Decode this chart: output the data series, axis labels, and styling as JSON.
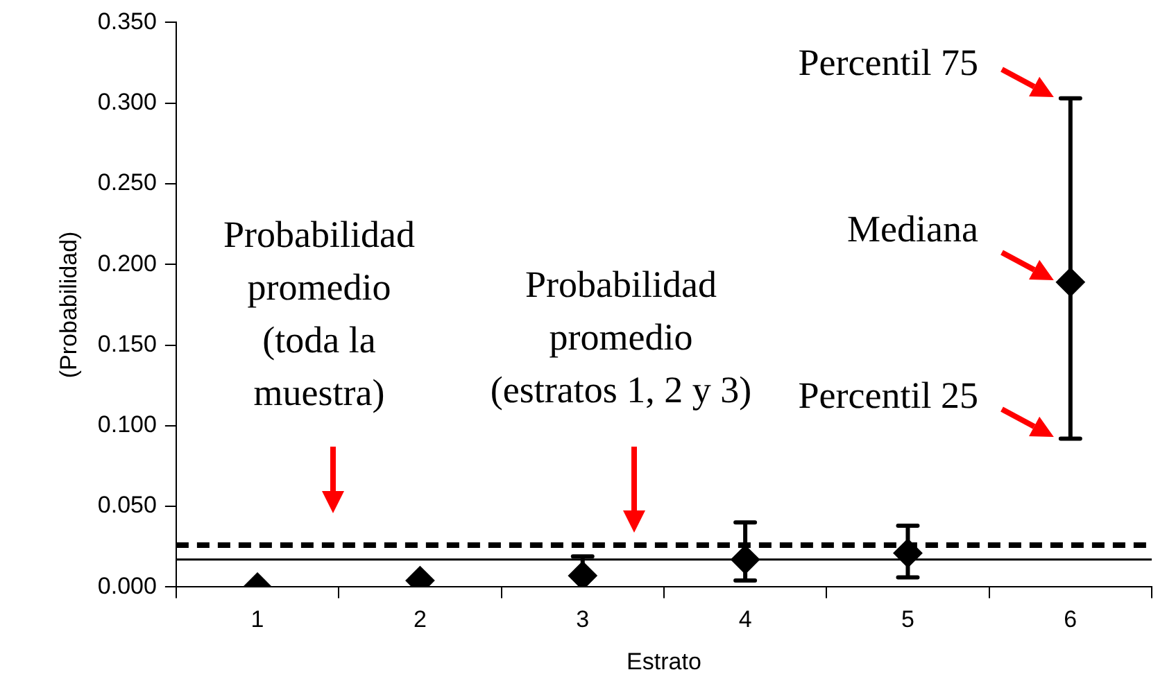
{
  "chart_data": {
    "type": "scatter",
    "xlabel": "Estrato",
    "ylabel": "(Probabilidad)",
    "categories": [
      "1",
      "2",
      "3",
      "4",
      "5",
      "6"
    ],
    "series": [
      {
        "color": "#000000",
        "values": [
          0.0,
          0.004,
          0.007,
          0.017,
          0.021,
          0.189
        ],
        "errors": [
          null,
          null,
          [
            0.007,
            0.019
          ],
          [
            0.004,
            0.04
          ],
          [
            0.006,
            0.038
          ],
          [
            0.092,
            0.303
          ]
        ]
      }
    ],
    "ylim": [
      0,
      0.35
    ],
    "yticks": [
      {
        "value": 0,
        "label": "0.000"
      },
      {
        "value": 0.05,
        "label": "0.050"
      },
      {
        "value": 0.1,
        "label": "0.100"
      },
      {
        "value": 0.15,
        "label": "0.150"
      },
      {
        "value": 0.2,
        "label": "0.200"
      },
      {
        "value": 0.25,
        "label": "0.250"
      },
      {
        "value": 0.3,
        "label": "0.300"
      },
      {
        "value": 0.35,
        "label": "0.350"
      }
    ],
    "ref_lines": [
      {
        "axis": "y",
        "value": 0.026,
        "line_style": "dashed",
        "color": "#000000"
      },
      {
        "axis": "y",
        "value": 0.017,
        "line_style": "solid",
        "color": "#000000"
      }
    ],
    "annotations": [
      "Probabilidad promedio (toda la muestra)",
      "Probabilidad promedio (estratos 1, 2 y 3)",
      {
        "text": "Percentil 75",
        "x": "6",
        "y": 0.303
      },
      {
        "text": "Mediana",
        "x": "6",
        "y": 0.189
      },
      {
        "text": "Percentil 25",
        "x": "6",
        "y": 0.092
      }
    ],
    "marker": "diamond",
    "grid": false,
    "legend": false
  }
}
